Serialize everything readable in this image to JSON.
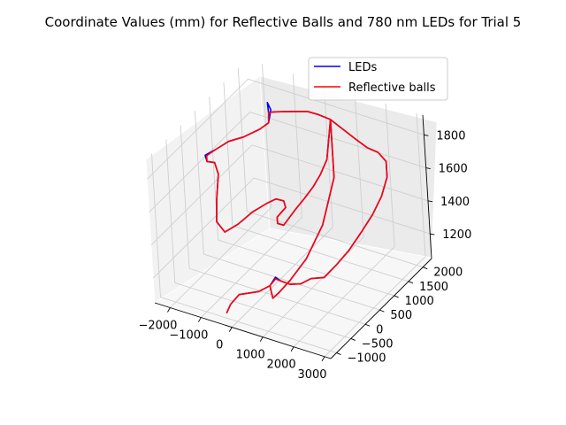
{
  "chart_data": {
    "type": "line",
    "projection": "3d",
    "title": "Coordinate Values (mm) for Reflective Balls and 780 nm LEDs for Trial 5",
    "xlabel": "",
    "ylabel": "",
    "zlabel": "",
    "xlim": [
      -2500,
      3200
    ],
    "ylim": [
      -1200,
      2300
    ],
    "zlim": [
      1050,
      1920
    ],
    "x_ticks": [
      -2000,
      -1000,
      0,
      1000,
      2000,
      3000
    ],
    "y_ticks": [
      -1000,
      -500,
      0,
      500,
      1000,
      1500,
      2000
    ],
    "z_ticks": [
      1200,
      1400,
      1600,
      1800
    ],
    "grid": true,
    "legend_position": "top-right",
    "series": [
      {
        "name": "LEDs",
        "color": "#0000ff",
        "points": [
          [
            380,
            -250,
            1160
          ],
          [
            480,
            -150,
            1200
          ],
          [
            620,
            -120,
            1180
          ],
          [
            800,
            0,
            1150
          ],
          [
            1050,
            100,
            1150
          ],
          [
            1300,
            200,
            1180
          ],
          [
            1550,
            380,
            1170
          ],
          [
            1800,
            550,
            1230
          ],
          [
            2050,
            750,
            1300
          ],
          [
            2250,
            1000,
            1380
          ],
          [
            2350,
            1300,
            1440
          ],
          [
            2380,
            1600,
            1500
          ],
          [
            2300,
            1900,
            1560
          ],
          [
            2150,
            2050,
            1620
          ],
          [
            1900,
            2050,
            1660
          ],
          [
            1600,
            2000,
            1680
          ],
          [
            1300,
            1950,
            1720
          ],
          [
            1000,
            1850,
            1780
          ],
          [
            700,
            1750,
            1840
          ],
          [
            400,
            1650,
            1870
          ],
          [
            100,
            1600,
            1880
          ],
          [
            -200,
            1550,
            1870
          ],
          [
            -500,
            1500,
            1860
          ],
          [
            -800,
            1450,
            1850
          ],
          [
            -1000,
            1420,
            1840
          ],
          [
            -1100,
            1500,
            1880
          ],
          [
            -1050,
            1550,
            1830
          ],
          [
            -1000,
            1400,
            1780
          ],
          [
            -1100,
            1200,
            1770
          ],
          [
            -1350,
            900,
            1760
          ],
          [
            -1650,
            700,
            1750
          ],
          [
            -1900,
            500,
            1720
          ],
          [
            -2100,
            350,
            1700
          ],
          [
            -1900,
            200,
            1700
          ],
          [
            -1600,
            150,
            1720
          ],
          [
            -1400,
            50,
            1680
          ],
          [
            -1350,
            -100,
            1560
          ],
          [
            -1300,
            -200,
            1440
          ],
          [
            -1100,
            -150,
            1380
          ],
          [
            -800,
            0,
            1420
          ],
          [
            -400,
            100,
            1500
          ],
          [
            0,
            200,
            1560
          ],
          [
            200,
            300,
            1580
          ],
          [
            350,
            400,
            1560
          ],
          [
            300,
            500,
            1500
          ],
          [
            100,
            550,
            1450
          ],
          [
            -100,
            600,
            1400
          ],
          [
            -150,
            650,
            1350
          ],
          [
            0,
            700,
            1340
          ],
          [
            250,
            850,
            1420
          ],
          [
            450,
            1000,
            1480
          ],
          [
            550,
            1200,
            1520
          ],
          [
            600,
            1400,
            1560
          ],
          [
            650,
            1600,
            1620
          ],
          [
            700,
            1750,
            1840
          ],
          [
            750,
            1700,
            1500
          ],
          [
            780,
            1200,
            1300
          ],
          [
            780,
            600,
            1200
          ],
          [
            700,
            100,
            1150
          ],
          [
            600,
            -200,
            1120
          ],
          [
            500,
            -300,
            1100
          ],
          [
            380,
            -250,
            1160
          ],
          [
            250,
            -500,
            1160
          ],
          [
            -200,
            -700,
            1150
          ],
          [
            -300,
            -900,
            1120
          ],
          [
            -350,
            -1000,
            1080
          ]
        ]
      },
      {
        "name": "Reflective balls",
        "color": "#ff0000",
        "points": [
          [
            380,
            -250,
            1160
          ],
          [
            480,
            -150,
            1190
          ],
          [
            620,
            -120,
            1180
          ],
          [
            800,
            0,
            1150
          ],
          [
            1050,
            100,
            1150
          ],
          [
            1300,
            200,
            1180
          ],
          [
            1550,
            380,
            1170
          ],
          [
            1800,
            550,
            1230
          ],
          [
            2050,
            750,
            1300
          ],
          [
            2250,
            1000,
            1380
          ],
          [
            2350,
            1300,
            1440
          ],
          [
            2380,
            1600,
            1500
          ],
          [
            2300,
            1900,
            1560
          ],
          [
            2150,
            2050,
            1620
          ],
          [
            1900,
            2050,
            1660
          ],
          [
            1600,
            2000,
            1680
          ],
          [
            1300,
            1950,
            1720
          ],
          [
            1000,
            1850,
            1780
          ],
          [
            700,
            1750,
            1840
          ],
          [
            400,
            1650,
            1870
          ],
          [
            100,
            1600,
            1880
          ],
          [
            -200,
            1550,
            1870
          ],
          [
            -500,
            1500,
            1860
          ],
          [
            -800,
            1450,
            1850
          ],
          [
            -1000,
            1420,
            1840
          ],
          [
            -1000,
            1400,
            1780
          ],
          [
            -1100,
            1200,
            1770
          ],
          [
            -1350,
            900,
            1760
          ],
          [
            -1650,
            700,
            1750
          ],
          [
            -1900,
            500,
            1720
          ],
          [
            -2050,
            350,
            1700
          ],
          [
            -1900,
            200,
            1700
          ],
          [
            -1600,
            150,
            1720
          ],
          [
            -1400,
            50,
            1680
          ],
          [
            -1350,
            -100,
            1560
          ],
          [
            -1300,
            -200,
            1440
          ],
          [
            -1100,
            -150,
            1380
          ],
          [
            -800,
            0,
            1420
          ],
          [
            -400,
            100,
            1500
          ],
          [
            0,
            200,
            1560
          ],
          [
            200,
            300,
            1580
          ],
          [
            350,
            400,
            1560
          ],
          [
            300,
            500,
            1500
          ],
          [
            100,
            550,
            1450
          ],
          [
            -100,
            600,
            1400
          ],
          [
            -150,
            650,
            1350
          ],
          [
            0,
            700,
            1340
          ],
          [
            250,
            850,
            1420
          ],
          [
            450,
            1000,
            1480
          ],
          [
            550,
            1200,
            1520
          ],
          [
            600,
            1400,
            1560
          ],
          [
            650,
            1600,
            1620
          ],
          [
            700,
            1750,
            1840
          ],
          [
            750,
            1700,
            1500
          ],
          [
            780,
            1200,
            1300
          ],
          [
            780,
            600,
            1200
          ],
          [
            700,
            100,
            1150
          ],
          [
            600,
            -200,
            1120
          ],
          [
            500,
            -300,
            1100
          ],
          [
            380,
            -250,
            1160
          ],
          [
            250,
            -500,
            1160
          ],
          [
            -200,
            -700,
            1150
          ],
          [
            -300,
            -900,
            1120
          ],
          [
            -350,
            -1000,
            1080
          ]
        ]
      }
    ]
  }
}
